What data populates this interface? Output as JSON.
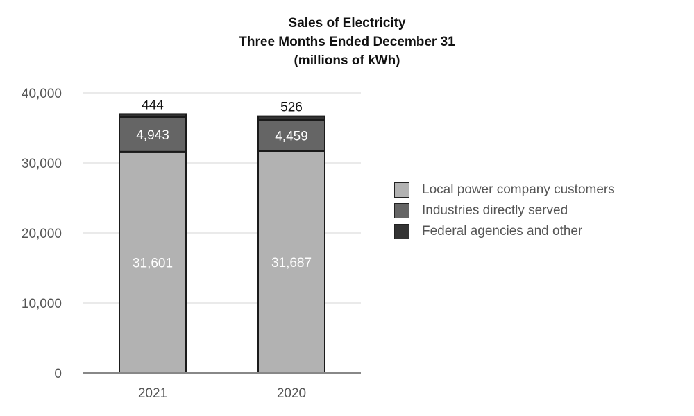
{
  "chart_data": {
    "type": "bar",
    "stacked": true,
    "title": [
      "Sales of Electricity",
      "Three Months Ended December 31",
      "(millions of kWh)"
    ],
    "xlabel": "",
    "ylabel": "",
    "categories": [
      "2021",
      "2020"
    ],
    "ylim": [
      0,
      40000
    ],
    "yticks": [
      0,
      10000,
      20000,
      30000,
      40000
    ],
    "ytick_labels": [
      "0",
      "10,000",
      "20,000",
      "30,000",
      "40,000"
    ],
    "grid": true,
    "legend_position": "right",
    "series": [
      {
        "name": "Local power company customers",
        "values": [
          31601,
          31687
        ],
        "labels": [
          "31,601",
          "31,687"
        ],
        "color": "#b2b2b2",
        "label_color": "#ffffff"
      },
      {
        "name": "Industries directly served",
        "values": [
          4943,
          4459
        ],
        "labels": [
          "4,943",
          "4,459"
        ],
        "color": "#656565",
        "label_color": "#ffffff"
      },
      {
        "name": "Federal agencies and other",
        "values": [
          444,
          526
        ],
        "labels": [
          "444",
          "526"
        ],
        "color": "#333333",
        "label_color": "#111111"
      }
    ]
  }
}
